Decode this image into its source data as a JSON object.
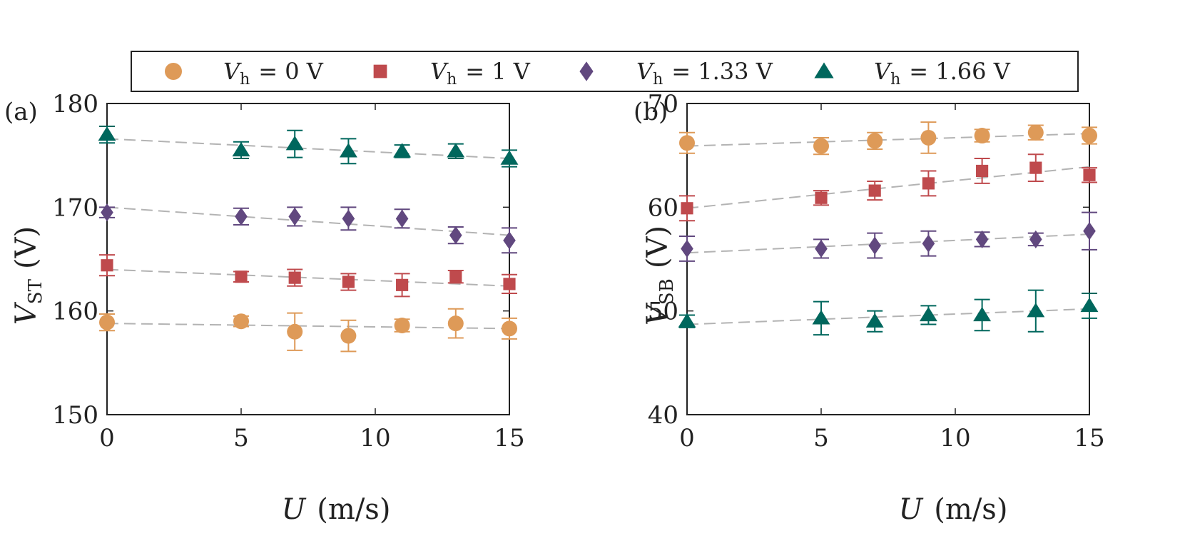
{
  "legend": [
    {
      "var": "V",
      "sub": "h",
      "value": "= 0 V",
      "color": "#DE9A58",
      "marker": "circle"
    },
    {
      "var": "V",
      "sub": "h",
      "value": "= 1 V",
      "color": "#BF4A4D",
      "marker": "square"
    },
    {
      "var": "V",
      "sub": "h",
      "value": "= 1.33 V",
      "color": "#61487F",
      "marker": "diamond"
    },
    {
      "var": "V",
      "sub": "h",
      "value": "= 1.66 V",
      "color": "#00675D",
      "marker": "triangle"
    }
  ],
  "chart_data": [
    {
      "type": "scatter",
      "panel_label": "(a)",
      "xlabel": {
        "var": "U",
        "unit": "(m/s)"
      },
      "ylabel": {
        "var": "V",
        "sub": "ST",
        "unit": "(V)"
      },
      "xlim": [
        0,
        15
      ],
      "ylim": [
        150,
        180
      ],
      "xticks": [
        0,
        5,
        10,
        15
      ],
      "yticks": [
        150,
        160,
        170,
        180
      ],
      "grid": false,
      "fit_lines": "dashed gray linear fits",
      "series": [
        {
          "name": "V_h = 0 V",
          "x": [
            0,
            5,
            7,
            9,
            11,
            13,
            15
          ],
          "y": [
            158.9,
            159.0,
            158.0,
            157.6,
            158.6,
            158.8,
            158.3
          ],
          "err": [
            0.8,
            0.5,
            1.8,
            1.5,
            0.6,
            1.4,
            1.0
          ],
          "fit": [
            158.8,
            158.3
          ]
        },
        {
          "name": "V_h = 1 V",
          "x": [
            0,
            5,
            7,
            9,
            11,
            13,
            15
          ],
          "y": [
            164.4,
            163.3,
            163.2,
            162.8,
            162.5,
            163.3,
            162.6
          ],
          "err": [
            1.0,
            0.5,
            0.8,
            0.8,
            1.1,
            0.6,
            0.9
          ],
          "fit": [
            164.0,
            162.4
          ]
        },
        {
          "name": "V_h = 1.33 V",
          "x": [
            0,
            5,
            7,
            9,
            11,
            13,
            15
          ],
          "y": [
            169.5,
            169.1,
            169.1,
            168.9,
            168.9,
            167.3,
            166.8
          ],
          "err": [
            0.5,
            0.8,
            0.9,
            1.1,
            0.9,
            0.8,
            1.2
          ],
          "fit": [
            170.0,
            167.3
          ]
        },
        {
          "name": "V_h = 1.66 V",
          "x": [
            0,
            5,
            7,
            9,
            11,
            13,
            15
          ],
          "y": [
            177.0,
            175.5,
            176.1,
            175.4,
            175.4,
            175.4,
            174.7
          ],
          "err": [
            0.8,
            0.8,
            1.3,
            1.2,
            0.6,
            0.7,
            0.8
          ],
          "fit": [
            176.6,
            174.7
          ]
        }
      ]
    },
    {
      "type": "scatter",
      "panel_label": "(b)",
      "xlabel": {
        "var": "U",
        "unit": "(m/s)"
      },
      "ylabel": {
        "var": "V",
        "sub": "SB",
        "unit": "(V)"
      },
      "xlim": [
        0,
        15
      ],
      "ylim": [
        40,
        70
      ],
      "xticks": [
        0,
        5,
        10,
        15
      ],
      "yticks": [
        40,
        50,
        60,
        70
      ],
      "grid": false,
      "fit_lines": "dashed gray linear fits",
      "series": [
        {
          "name": "V_h = 0 V",
          "x": [
            0,
            5,
            7,
            9,
            11,
            13,
            15
          ],
          "y": [
            66.2,
            65.9,
            66.4,
            66.7,
            66.9,
            67.2,
            66.9
          ],
          "err": [
            1.0,
            0.8,
            0.8,
            1.5,
            0.6,
            0.7,
            0.8
          ],
          "fit": [
            65.9,
            67.1
          ]
        },
        {
          "name": "V_h = 1 V",
          "x": [
            0,
            5,
            7,
            9,
            11,
            13,
            15
          ],
          "y": [
            59.9,
            60.9,
            61.6,
            62.3,
            63.5,
            63.8,
            63.1
          ],
          "err": [
            1.2,
            0.7,
            0.9,
            1.2,
            1.2,
            1.3,
            0.7
          ],
          "fit": [
            59.9,
            63.9
          ]
        },
        {
          "name": "V_h = 1.33 V",
          "x": [
            0,
            5,
            7,
            9,
            11,
            13,
            15
          ],
          "y": [
            56.0,
            56.0,
            56.3,
            56.5,
            56.9,
            56.9,
            57.7
          ],
          "err": [
            1.2,
            0.9,
            1.2,
            1.2,
            0.7,
            0.6,
            1.8
          ],
          "fit": [
            55.6,
            57.4
          ]
        },
        {
          "name": "V_h = 1.66 V",
          "x": [
            0,
            5,
            7,
            9,
            11,
            13,
            15
          ],
          "y": [
            49.0,
            49.3,
            49.0,
            49.6,
            49.6,
            50.0,
            50.5
          ],
          "err": [
            0.6,
            1.6,
            1.0,
            0.9,
            1.5,
            2.0,
            1.2
          ],
          "fit": [
            48.7,
            50.2
          ]
        }
      ]
    }
  ]
}
